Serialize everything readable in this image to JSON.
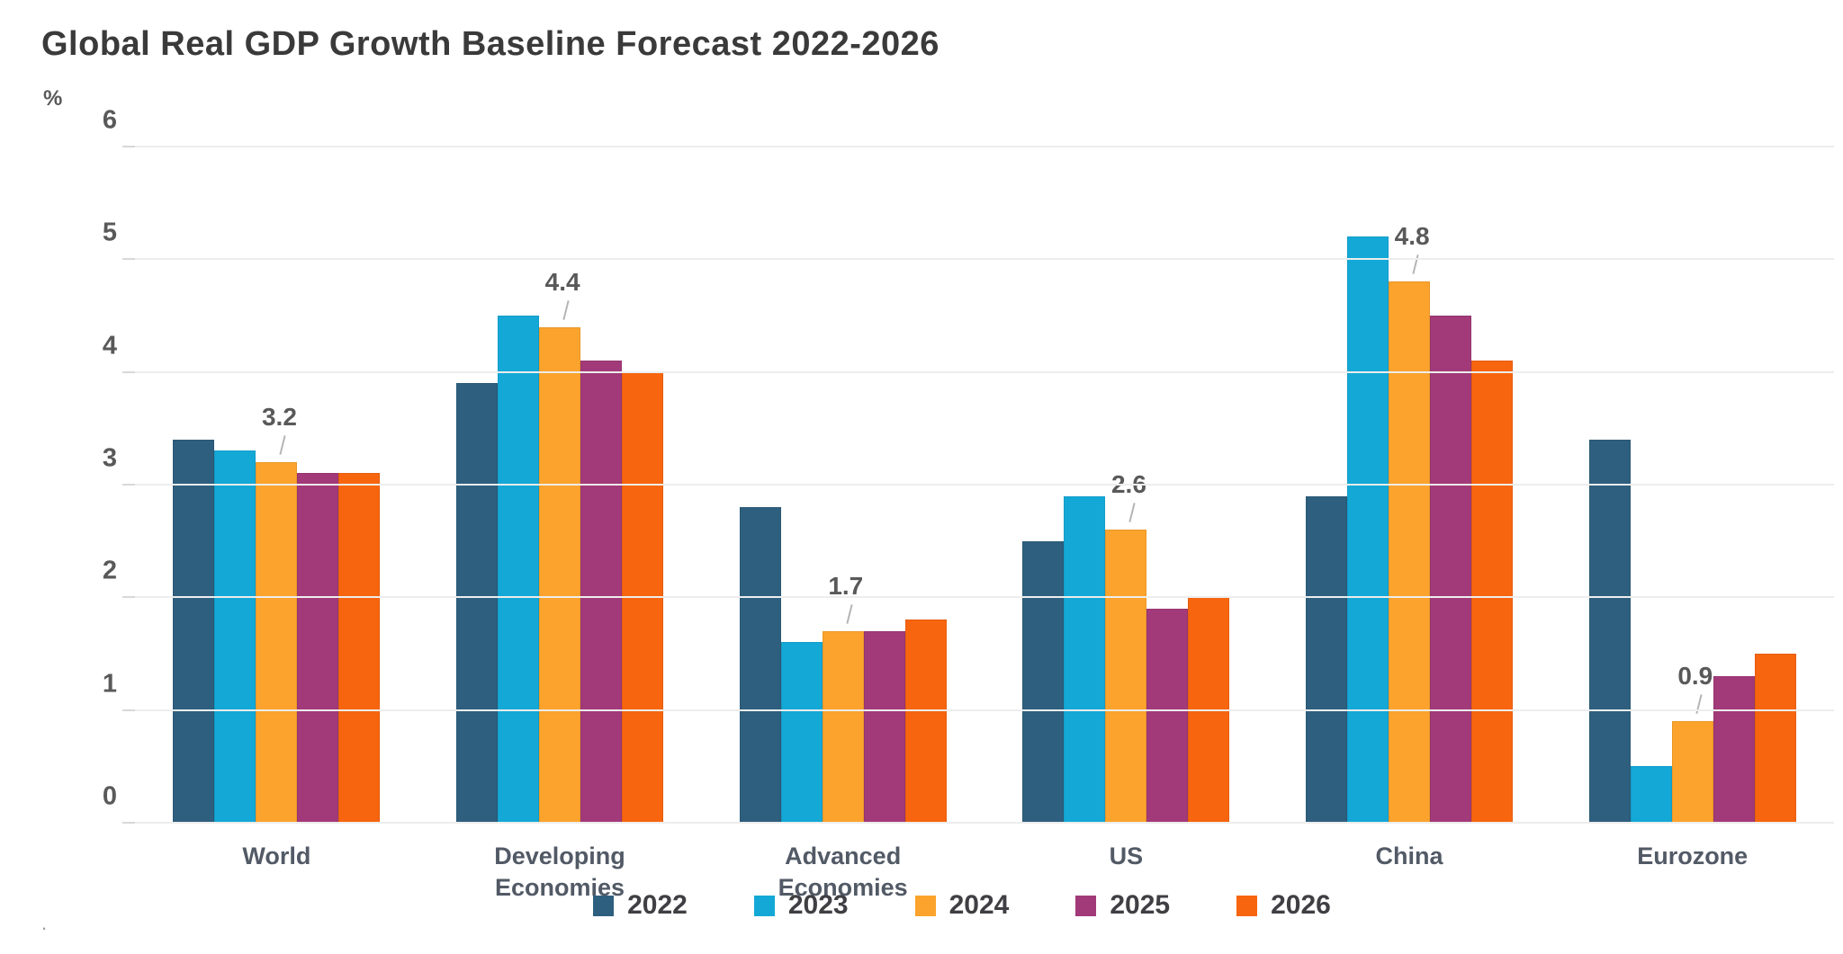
{
  "chart_data": {
    "type": "bar",
    "title": "Global Real GDP Growth Baseline Forecast 2022-2026",
    "ylabel": "%",
    "xlabel": "",
    "ylim": [
      0,
      6
    ],
    "yticks": [
      0,
      1,
      2,
      3,
      4,
      5,
      6
    ],
    "grid": true,
    "legend_position": "bottom",
    "categories": [
      "World",
      "Developing Economies",
      "Advanced Economies",
      "US",
      "China",
      "Eurozone"
    ],
    "series": [
      {
        "name": "2022",
        "color": "#2e5f7e",
        "values": [
          3.4,
          3.9,
          2.8,
          2.5,
          2.9,
          3.4
        ]
      },
      {
        "name": "2023",
        "color": "#14a8d7",
        "values": [
          3.3,
          4.5,
          1.6,
          2.9,
          5.2,
          0.5
        ]
      },
      {
        "name": "2024",
        "color": "#fba32c",
        "values": [
          3.2,
          4.4,
          1.7,
          2.6,
          4.8,
          0.9
        ]
      },
      {
        "name": "2025",
        "color": "#a23a79",
        "values": [
          3.1,
          4.1,
          1.7,
          1.9,
          4.5,
          1.3
        ]
      },
      {
        "name": "2026",
        "color": "#f7650f",
        "values": [
          3.1,
          4.0,
          1.8,
          2.0,
          4.1,
          1.5
        ]
      }
    ],
    "data_labels": {
      "series": "2024",
      "labels": [
        "3.2",
        "4.4",
        "1.7",
        "2.6",
        "4.8",
        "0.9"
      ]
    },
    "gridline_color": "#ededed",
    "tick_color": "#595959",
    "title_color": "#3a3a3a",
    "category_label_color": "#525a66"
  },
  "footer_mark": "."
}
